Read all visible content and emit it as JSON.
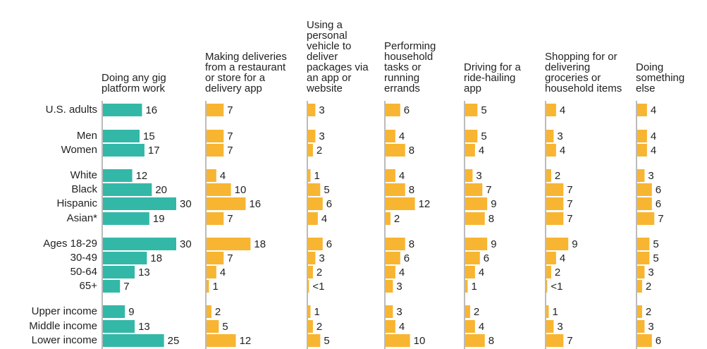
{
  "chart_data": {
    "type": "bar",
    "categories": [
      "U.S. adults",
      "Men",
      "Women",
      "White",
      "Black",
      "Hispanic",
      "Asian*",
      "Ages 18-29",
      "30-49",
      "50-64",
      "65+",
      "Upper income",
      "Middle income",
      "Lower income"
    ],
    "xlim": [
      0,
      30
    ],
    "series": [
      {
        "name": "Doing any gig platform work",
        "color": "#33b8a8",
        "values": [
          16,
          15,
          17,
          12,
          20,
          30,
          19,
          30,
          18,
          13,
          7,
          9,
          13,
          25
        ]
      },
      {
        "name": "Making deliveries from a restaurant or store for a delivery app",
        "color": "#f8b531",
        "values": [
          7,
          7,
          7,
          4,
          10,
          16,
          7,
          18,
          7,
          4,
          1,
          2,
          5,
          12
        ]
      },
      {
        "name": "Using a personal vehicle to deliver packages via an app or website",
        "color": "#f8b531",
        "values": [
          3,
          3,
          2,
          1,
          5,
          6,
          4,
          6,
          3,
          2,
          0.4,
          1,
          2,
          5
        ],
        "value_labels": [
          "3",
          "3",
          "2",
          "1",
          "5",
          "6",
          "4",
          "6",
          "3",
          "2",
          "<1",
          "1",
          "2",
          "5"
        ]
      },
      {
        "name": "Performing household tasks or running errands",
        "color": "#f8b531",
        "values": [
          6,
          4,
          8,
          4,
          8,
          12,
          2,
          8,
          6,
          4,
          3,
          3,
          4,
          10
        ]
      },
      {
        "name": "Driving for a ride-hailing app",
        "color": "#f8b531",
        "values": [
          5,
          5,
          4,
          3,
          7,
          9,
          8,
          9,
          6,
          4,
          1,
          2,
          4,
          8
        ]
      },
      {
        "name": "Shopping for or delivering groceries or household items",
        "color": "#f8b531",
        "values": [
          4,
          3,
          4,
          2,
          7,
          7,
          7,
          9,
          4,
          2,
          0.4,
          1,
          3,
          7
        ],
        "value_labels": [
          "4",
          "3",
          "4",
          "2",
          "7",
          "7",
          "7",
          "9",
          "4",
          "2",
          "<1",
          "1",
          "3",
          "7"
        ]
      },
      {
        "name": "Doing something else",
        "color": "#f8b531",
        "values": [
          4,
          4,
          4,
          3,
          6,
          6,
          7,
          5,
          5,
          3,
          2,
          2,
          3,
          6
        ]
      }
    ]
  }
}
